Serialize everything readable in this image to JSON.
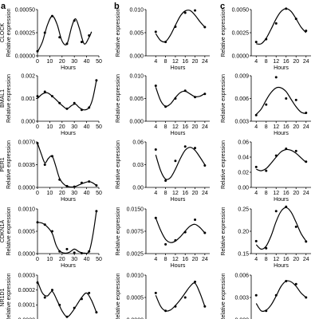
{
  "panel_letters": [
    "a",
    "b",
    "c"
  ],
  "chart_data": [
    {
      "id": "a-clock",
      "type": "line",
      "ylabel": "CLOCK",
      "xlabel": "Hours",
      "xlim": [
        0,
        50
      ],
      "ylim": [
        0,
        0.0005
      ],
      "xticks": [
        "0",
        "10",
        "20",
        "30",
        "40",
        "50"
      ],
      "yticks": [
        "0.00000",
        "0.00025",
        "0.00050"
      ],
      "x": [
        0,
        6,
        12,
        18,
        24,
        30,
        36,
        42
      ],
      "y": [
        5e-05,
        0.00025,
        0.00043,
        0.0002,
        0.00013,
        0.00038,
        0.00015,
        0.00022
      ],
      "fit": [
        [
          0,
          4e-05
        ],
        [
          4,
          0.00015
        ],
        [
          8,
          0.00033
        ],
        [
          12,
          0.00043
        ],
        [
          16,
          0.00034
        ],
        [
          20,
          0.00016
        ],
        [
          24,
          0.00013
        ],
        [
          28,
          0.00032
        ],
        [
          31,
          0.0004
        ],
        [
          34,
          0.0003
        ],
        [
          38,
          0.00013
        ],
        [
          42,
          0.0002
        ],
        [
          44,
          0.00026
        ]
      ]
    },
    {
      "id": "b-clock",
      "type": "line",
      "ylabel": "Relative expression",
      "xlabel": "Hours",
      "xlim": [
        0,
        26
      ],
      "ylim": [
        0,
        0.01
      ],
      "xticks": [
        "4",
        "8",
        "12",
        "16",
        "20",
        "24"
      ],
      "yticks": [
        "0.000",
        "0.005",
        "0.010"
      ],
      "x": [
        4,
        8,
        12,
        16,
        20,
        24
      ],
      "y": [
        0.0052,
        0.003,
        0.0063,
        0.0093,
        0.0098,
        0.0062
      ],
      "fit": [
        [
          4,
          0.0048
        ],
        [
          6,
          0.0033
        ],
        [
          8,
          0.0031
        ],
        [
          10,
          0.0045
        ],
        [
          12,
          0.0066
        ],
        [
          14,
          0.0086
        ],
        [
          16,
          0.0097
        ],
        [
          18,
          0.0098
        ],
        [
          20,
          0.0088
        ],
        [
          22,
          0.0074
        ],
        [
          24,
          0.0062
        ]
      ]
    },
    {
      "id": "c-clock",
      "type": "line",
      "ylabel": "Relative expression",
      "xlabel": "Hours",
      "xlim": [
        2,
        26
      ],
      "ylim": [
        0,
        0.005
      ],
      "xticks": [
        "4",
        "8",
        "12",
        "16",
        "20",
        "24"
      ],
      "yticks": [
        "0.0000",
        "0.0025",
        "0.0050"
      ],
      "x": [
        4,
        8,
        12,
        16,
        20,
        24
      ],
      "y": [
        0.0015,
        0.0018,
        0.0035,
        0.0051,
        0.004,
        0.0027
      ],
      "fit": [
        [
          4,
          0.0013
        ],
        [
          6,
          0.0013
        ],
        [
          8,
          0.0019
        ],
        [
          10,
          0.0029
        ],
        [
          12,
          0.004
        ],
        [
          14,
          0.0048
        ],
        [
          16,
          0.0051
        ],
        [
          18,
          0.0048
        ],
        [
          20,
          0.004
        ],
        [
          22,
          0.0031
        ],
        [
          24,
          0.0025
        ]
      ]
    },
    {
      "id": "a-bmal1",
      "type": "line",
      "ylabel": "BMAL1",
      "xlabel": "Hours",
      "xlim": [
        0,
        50
      ],
      "ylim": [
        0,
        0.002
      ],
      "xticks": [
        "0",
        "10",
        "20",
        "30",
        "40",
        "50"
      ],
      "yticks": [
        "0.000",
        "0.001",
        "0.002"
      ],
      "x": [
        0,
        6,
        12,
        18,
        24,
        30,
        36,
        42,
        48
      ],
      "y": [
        0.0011,
        0.0013,
        0.0011,
        0.0008,
        0.00055,
        0.0008,
        0.0005,
        0.0006,
        0.0018
      ],
      "fit": [
        [
          0,
          0.001
        ],
        [
          4,
          0.0012
        ],
        [
          8,
          0.00125
        ],
        [
          12,
          0.0011
        ],
        [
          16,
          0.0009
        ],
        [
          20,
          0.0007
        ],
        [
          24,
          0.00055
        ],
        [
          28,
          0.0007
        ],
        [
          31,
          0.00075
        ],
        [
          34,
          0.0006
        ],
        [
          38,
          0.0005
        ],
        [
          42,
          0.0006
        ],
        [
          45,
          0.001
        ],
        [
          48,
          0.0018
        ]
      ]
    },
    {
      "id": "b-bmal1",
      "type": "line",
      "ylabel": "Relative expression",
      "xlabel": "Hours",
      "xlim": [
        0,
        26
      ],
      "ylim": [
        0,
        0.01
      ],
      "xticks": [
        "4",
        "8",
        "12",
        "16",
        "20",
        "24"
      ],
      "yticks": [
        "0.000",
        "0.005",
        "0.010"
      ],
      "x": [
        4,
        8,
        12,
        16,
        20,
        24
      ],
      "y": [
        0.0078,
        0.0032,
        0.005,
        0.0067,
        0.0053,
        0.006
      ],
      "fit": [
        [
          4,
          0.0075
        ],
        [
          6,
          0.0045
        ],
        [
          8,
          0.0033
        ],
        [
          10,
          0.0038
        ],
        [
          12,
          0.0052
        ],
        [
          14,
          0.0063
        ],
        [
          16,
          0.0066
        ],
        [
          18,
          0.006
        ],
        [
          20,
          0.0054
        ],
        [
          22,
          0.0055
        ],
        [
          24,
          0.0061
        ]
      ]
    },
    {
      "id": "c-bmal1",
      "type": "line",
      "ylabel": "Relative expression",
      "xlabel": "Hours",
      "xlim": [
        2,
        26
      ],
      "ylim": [
        0.003,
        0.009
      ],
      "xticks": [
        "4",
        "8",
        "12",
        "16",
        "20",
        "24"
      ],
      "yticks": [
        "0.003",
        "0.006",
        "0.009"
      ],
      "x": [
        4,
        8,
        12,
        16,
        20,
        24
      ],
      "y": [
        0.0038,
        0.0052,
        0.0088,
        0.006,
        0.0058,
        0.0041
      ],
      "fit": [
        [
          4,
          0.0039
        ],
        [
          6,
          0.0046
        ],
        [
          8,
          0.0058
        ],
        [
          10,
          0.0068
        ],
        [
          12,
          0.0074
        ],
        [
          14,
          0.0074
        ],
        [
          16,
          0.0069
        ],
        [
          18,
          0.0059
        ],
        [
          20,
          0.0049
        ],
        [
          22,
          0.0042
        ],
        [
          24,
          0.004
        ]
      ]
    },
    {
      "id": "a-per1",
      "type": "line",
      "ylabel": "PER1",
      "xlabel": "Hours",
      "xlim": [
        0,
        50
      ],
      "ylim": [
        0,
        0.007
      ],
      "xticks": [
        "0",
        "10",
        "20",
        "30",
        "40",
        "50"
      ],
      "yticks": [
        "0.0000",
        "0.0035",
        "0.0070"
      ],
      "x": [
        0,
        6,
        12,
        18,
        24,
        30,
        36,
        42,
        48
      ],
      "y": [
        0.0068,
        0.0035,
        0.0048,
        0.0012,
        0.0002,
        0.0001,
        0.0007,
        0.0009,
        0.0003
      ],
      "fit": [
        [
          0,
          0.0068
        ],
        [
          3,
          0.0052
        ],
        [
          6,
          0.0038
        ],
        [
          9,
          0.0045
        ],
        [
          12,
          0.0048
        ],
        [
          15,
          0.0032
        ],
        [
          18,
          0.0014
        ],
        [
          22,
          0.0004
        ],
        [
          26,
          0.0001
        ],
        [
          30,
          0.0001
        ],
        [
          34,
          0.0004
        ],
        [
          38,
          0.0007
        ],
        [
          42,
          0.0009
        ],
        [
          45,
          0.0007
        ],
        [
          48,
          0.0003
        ]
      ]
    },
    {
      "id": "b-per1",
      "type": "line",
      "ylabel": "Relative expression",
      "xlabel": "Hours",
      "xlim": [
        0,
        26
      ],
      "ylim": [
        0,
        0.06
      ],
      "xticks": [
        "4",
        "8",
        "12",
        "16",
        "20",
        "24"
      ],
      "yticks": [
        "0.00",
        "0.03",
        "0.06"
      ],
      "x": [
        4,
        8,
        12,
        16,
        20,
        24
      ],
      "y": [
        0.05,
        0.009,
        0.035,
        0.054,
        0.052,
        0.029
      ],
      "fit": [
        [
          4,
          0.043
        ],
        [
          6,
          0.022
        ],
        [
          8,
          0.011
        ],
        [
          10,
          0.013
        ],
        [
          12,
          0.024
        ],
        [
          14,
          0.038
        ],
        [
          16,
          0.049
        ],
        [
          18,
          0.053
        ],
        [
          20,
          0.049
        ],
        [
          22,
          0.04
        ],
        [
          24,
          0.03
        ]
      ]
    },
    {
      "id": "c-per1",
      "type": "line",
      "ylabel": "Relative expression",
      "xlabel": "Hours",
      "xlim": [
        2,
        26
      ],
      "ylim": [
        0,
        0.06
      ],
      "xticks": [
        "4",
        "8",
        "12",
        "16",
        "20",
        "24"
      ],
      "yticks": [
        "0.00",
        "0.02",
        "0.04",
        "0.06"
      ],
      "x": [
        4,
        8,
        12,
        16,
        20,
        24
      ],
      "y": [
        0.027,
        0.022,
        0.042,
        0.051,
        0.048,
        0.034
      ],
      "fit": [
        [
          4,
          0.024
        ],
        [
          6,
          0.022
        ],
        [
          8,
          0.025
        ],
        [
          10,
          0.032
        ],
        [
          12,
          0.04
        ],
        [
          14,
          0.047
        ],
        [
          16,
          0.05
        ],
        [
          18,
          0.049
        ],
        [
          20,
          0.045
        ],
        [
          22,
          0.039
        ],
        [
          24,
          0.033
        ]
      ]
    },
    {
      "id": "a-cdkn1a",
      "type": "line",
      "ylabel": "CDKN1A",
      "xlabel": "Hours",
      "xlim": [
        0,
        50
      ],
      "ylim": [
        0,
        0.001
      ],
      "xticks": [
        "0",
        "10",
        "20",
        "30",
        "40",
        "50"
      ],
      "yticks": [
        "0.0000",
        "0.0005",
        "0.0010"
      ],
      "x": [
        0,
        6,
        12,
        18,
        24,
        30,
        36,
        42,
        48
      ],
      "y": [
        0.0007,
        0.00065,
        0.0005,
        5e-05,
        0.0001,
        2e-05,
        1e-05,
        5e-05,
        0.00095
      ],
      "fit": [
        [
          0,
          0.0007
        ],
        [
          4,
          0.00068
        ],
        [
          8,
          0.0006
        ],
        [
          12,
          0.00045
        ],
        [
          15,
          0.0002
        ],
        [
          18,
          6e-05
        ],
        [
          22,
          1e-05
        ],
        [
          26,
          3e-05
        ],
        [
          30,
          0.0001
        ],
        [
          34,
          4e-05
        ],
        [
          38,
          1e-05
        ],
        [
          42,
          5e-05
        ],
        [
          45,
          0.0004
        ],
        [
          48,
          0.00095
        ]
      ]
    },
    {
      "id": "b-cdkn1a",
      "type": "line",
      "ylabel": "Relative expression",
      "xlabel": "Hours",
      "xlim": [
        0,
        26
      ],
      "ylim": [
        0.0025,
        0.015
      ],
      "xticks": [
        "4",
        "8",
        "12",
        "16",
        "20",
        "24"
      ],
      "yticks": [
        "0.0025",
        "0.0075",
        "0.0150"
      ],
      "x": [
        4,
        8,
        12,
        16,
        20,
        24
      ],
      "y": [
        0.0125,
        0.0051,
        0.0062,
        0.0085,
        0.012,
        0.0083
      ],
      "fit": [
        [
          4,
          0.0125
        ],
        [
          6,
          0.009
        ],
        [
          8,
          0.0065
        ],
        [
          10,
          0.0056
        ],
        [
          12,
          0.006
        ],
        [
          14,
          0.0072
        ],
        [
          16,
          0.0088
        ],
        [
          18,
          0.0102
        ],
        [
          20,
          0.0107
        ],
        [
          22,
          0.0098
        ],
        [
          24,
          0.0083
        ]
      ]
    },
    {
      "id": "c-cdkn1a",
      "type": "line",
      "ylabel": "Relative expression",
      "xlabel": "Hours",
      "xlim": [
        2,
        26
      ],
      "ylim": [
        0.15,
        0.25
      ],
      "xticks": [
        "4",
        "8",
        "12",
        "16",
        "20",
        "24"
      ],
      "yticks": [
        "0.15",
        "0.20",
        "0.25"
      ],
      "x": [
        4,
        8,
        12,
        16,
        20,
        24
      ],
      "y": [
        0.178,
        0.162,
        0.245,
        0.255,
        0.21,
        0.177
      ],
      "fit": [
        [
          4,
          0.17
        ],
        [
          6,
          0.16
        ],
        [
          8,
          0.167
        ],
        [
          10,
          0.19
        ],
        [
          12,
          0.222
        ],
        [
          14,
          0.245
        ],
        [
          16,
          0.253
        ],
        [
          18,
          0.243
        ],
        [
          20,
          0.22
        ],
        [
          22,
          0.195
        ],
        [
          24,
          0.178
        ]
      ]
    },
    {
      "id": "a-nr1d1",
      "type": "line",
      "ylabel": "NR1D1",
      "xlabel": "Hours",
      "xlim": [
        0,
        50
      ],
      "ylim": [
        0,
        0.0003
      ],
      "xticks": [
        "0",
        "10",
        "20",
        "30",
        "40",
        "50"
      ],
      "yticks": [
        "0.0000",
        "0.0001",
        "0.0002",
        "0.0003"
      ],
      "x": [
        0,
        6,
        12,
        18,
        24,
        30,
        36,
        42,
        48
      ],
      "y": [
        0.00025,
        0.00015,
        0.0002,
        0.0001,
        2e-05,
        8e-05,
        0.00014,
        0.00018,
        5e-05
      ],
      "fit": [
        [
          0,
          0.00026
        ],
        [
          4,
          0.00018
        ],
        [
          8,
          0.00016
        ],
        [
          12,
          0.00019
        ],
        [
          16,
          0.00013
        ],
        [
          20,
          6e-05
        ],
        [
          24,
          2e-05
        ],
        [
          28,
          5e-05
        ],
        [
          32,
          0.0001
        ],
        [
          36,
          0.00015
        ],
        [
          40,
          0.00018
        ],
        [
          44,
          0.00013
        ],
        [
          48,
          5e-05
        ]
      ]
    },
    {
      "id": "b-nr1d1",
      "type": "line",
      "ylabel": "Relative expression",
      "xlabel": "Hours",
      "xlim": [
        0,
        26
      ],
      "ylim": [
        0,
        0.001
      ],
      "xticks": [
        "4",
        "8",
        "12",
        "16",
        "20",
        "24"
      ],
      "yticks": [
        "0.0000",
        "0.0005",
        "0.0010"
      ],
      "x": [
        4,
        8,
        12,
        16,
        20,
        24
      ],
      "y": [
        0.0006,
        0.0002,
        0.0003,
        0.0005,
        0.00085,
        0.0003
      ],
      "fit": [
        [
          4,
          0.00055
        ],
        [
          6,
          0.0003
        ],
        [
          8,
          0.0002
        ],
        [
          10,
          0.00022
        ],
        [
          12,
          0.00032
        ],
        [
          14,
          0.00045
        ],
        [
          16,
          0.0006
        ],
        [
          18,
          0.00075
        ],
        [
          20,
          0.00082
        ],
        [
          22,
          0.0006
        ],
        [
          24,
          0.0003
        ]
      ]
    },
    {
      "id": "c-nr1d1",
      "type": "line",
      "ylabel": "Relative expression",
      "xlabel": "Hours",
      "xlim": [
        2,
        26
      ],
      "ylim": [
        0,
        0.006
      ],
      "xticks": [
        "4",
        "8",
        "12",
        "16",
        "20",
        "24"
      ],
      "yticks": [
        "0.000",
        "0.003",
        "0.006"
      ],
      "x": [
        4,
        8,
        12,
        16,
        20,
        24
      ],
      "y": [
        0.0033,
        0.0012,
        0.0033,
        0.0052,
        0.0048,
        0.003
      ],
      "fit": [
        [
          4,
          0.0022
        ],
        [
          6,
          0.0012
        ],
        [
          8,
          0.0013
        ],
        [
          10,
          0.002
        ],
        [
          12,
          0.0032
        ],
        [
          14,
          0.0045
        ],
        [
          16,
          0.0052
        ],
        [
          18,
          0.0051
        ],
        [
          20,
          0.0045
        ],
        [
          22,
          0.0036
        ],
        [
          24,
          0.003
        ]
      ]
    }
  ]
}
